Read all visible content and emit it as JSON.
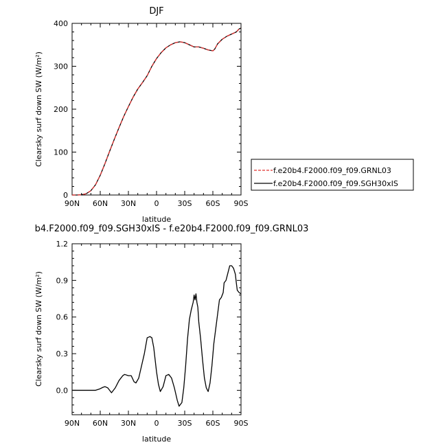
{
  "chart_data": [
    {
      "type": "line",
      "title": "DJF",
      "xlabel": "latitude",
      "ylabel": "Clearsky surf down SW (W/m²)",
      "x_ticks": [
        {
          "value": 90,
          "label": "90N"
        },
        {
          "value": 60,
          "label": "60N"
        },
        {
          "value": 30,
          "label": "30N"
        },
        {
          "value": 0,
          "label": "0"
        },
        {
          "value": -30,
          "label": "30S"
        },
        {
          "value": -60,
          "label": "60S"
        },
        {
          "value": -90,
          "label": "90S"
        }
      ],
      "xlim": [
        90,
        -90
      ],
      "ylim": [
        0,
        400
      ],
      "y_ticks": [
        0,
        100,
        200,
        300,
        400
      ],
      "legend_position": "right",
      "series": [
        {
          "name": "f.e20b4.F2000.f09_f09.GRNL03",
          "color": "#e0302f",
          "dash": "dashed",
          "x": [
            90,
            85,
            80,
            75,
            70,
            65,
            60,
            55,
            50,
            45,
            40,
            35,
            30,
            25,
            20,
            15,
            10,
            5,
            0,
            -5,
            -10,
            -15,
            -20,
            -25,
            -30,
            -35,
            -40,
            -45,
            -50,
            -55,
            -60,
            -62,
            -65,
            -70,
            -75,
            -80,
            -85,
            -88,
            -90
          ],
          "y": [
            0,
            0,
            0.5,
            3,
            10,
            24,
            46,
            73,
            102,
            130,
            157,
            183,
            206,
            228,
            247,
            262,
            278,
            300,
            318,
            332,
            343,
            350,
            355,
            357,
            355,
            350,
            345,
            345,
            342,
            338,
            336,
            340,
            352,
            363,
            370,
            375,
            380,
            387,
            389
          ]
        },
        {
          "name": "f.e20b4.F2000.f09_f09.SGH30xIS",
          "color": "#000000",
          "dash": "solid",
          "x": [
            90,
            85,
            80,
            75,
            70,
            65,
            60,
            55,
            50,
            45,
            40,
            35,
            30,
            25,
            20,
            15,
            10,
            5,
            0,
            -5,
            -10,
            -15,
            -20,
            -25,
            -30,
            -35,
            -40,
            -45,
            -50,
            -55,
            -60,
            -62,
            -65,
            -70,
            -75,
            -80,
            -85,
            -88,
            -90
          ],
          "y": [
            0,
            0,
            0.5,
            3,
            10,
            24,
            46,
            73,
            102,
            130,
            157,
            183,
            206,
            228,
            247,
            262,
            278,
            300,
            318,
            332,
            343,
            350,
            355,
            357,
            355,
            350,
            345,
            345,
            342,
            338,
            336,
            340,
            352,
            363,
            370,
            375,
            380,
            387,
            389
          ]
        }
      ]
    },
    {
      "type": "line",
      "title": "b4.F2000.f09_f09.SGH30xIS - f.e20b4.F2000.f09_f09.GRNL03",
      "xlabel": "latitude",
      "ylabel": "Clearsky surf down SW (W/m²)",
      "x_ticks": [
        {
          "value": 90,
          "label": "90N"
        },
        {
          "value": 60,
          "label": "60N"
        },
        {
          "value": 30,
          "label": "30N"
        },
        {
          "value": 0,
          "label": "0"
        },
        {
          "value": -30,
          "label": "30S"
        },
        {
          "value": -60,
          "label": "60S"
        },
        {
          "value": -90,
          "label": "90S"
        }
      ],
      "xlim": [
        90,
        -90
      ],
      "ylim": [
        -0.2,
        1.2
      ],
      "y_ticks": [
        {
          "value": 0,
          "label": "0.0"
        },
        {
          "value": 0.3,
          "label": "0.3"
        },
        {
          "value": 0.6,
          "label": "0.6"
        },
        {
          "value": 0.9,
          "label": "0.9"
        },
        {
          "value": 1.2,
          "label": "1.2"
        }
      ],
      "series": [
        {
          "color": "#000000",
          "dash": "solid",
          "x": [
            90,
            80,
            70,
            65,
            61,
            57,
            55,
            52,
            48,
            44,
            40,
            36,
            34,
            30,
            27,
            24,
            22,
            19,
            16,
            13,
            10,
            7,
            5,
            3,
            0,
            -2,
            -4,
            -7,
            -10,
            -13,
            -16,
            -19,
            -22,
            -24,
            -27,
            -29,
            -31,
            -33,
            -35,
            -37,
            -39,
            -40,
            -41,
            -42,
            -43,
            -44,
            -45,
            -47,
            -49,
            -51,
            -53,
            -55,
            -57,
            -59,
            -61,
            -63,
            -65,
            -67,
            -69,
            -71,
            -72,
            -74,
            -76,
            -78,
            -80,
            -82,
            -84,
            -85,
            -86,
            -88,
            -90
          ],
          "y": [
            0,
            0,
            0,
            0,
            0.01,
            0.025,
            0.03,
            0.02,
            -0.02,
            0.02,
            0.08,
            0.12,
            0.13,
            0.12,
            0.12,
            0.07,
            0.06,
            0.1,
            0.2,
            0.3,
            0.43,
            0.44,
            0.43,
            0.35,
            0.15,
            0.05,
            -0.01,
            0.03,
            0.12,
            0.13,
            0.1,
            0.02,
            -0.08,
            -0.13,
            -0.1,
            0.02,
            0.2,
            0.42,
            0.58,
            0.66,
            0.72,
            0.78,
            0.74,
            0.79,
            0.72,
            0.68,
            0.56,
            0.42,
            0.25,
            0.1,
            0.02,
            -0.01,
            0.06,
            0.2,
            0.38,
            0.5,
            0.62,
            0.74,
            0.76,
            0.8,
            0.88,
            0.9,
            0.96,
            1.02,
            1.02,
            1.0,
            0.95,
            0.88,
            0.82,
            0.8,
            0.79
          ]
        }
      ]
    }
  ]
}
